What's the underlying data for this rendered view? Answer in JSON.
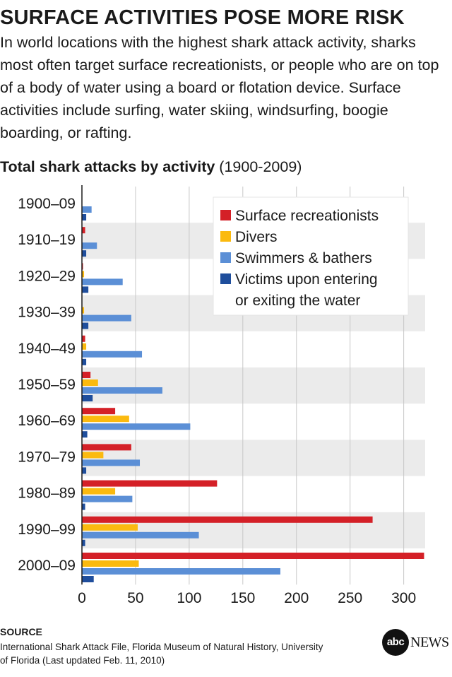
{
  "title": "SURFACE ACTIVITIES POSE MORE RISK",
  "subtitle": "In world locations with the highest shark attack activity, sharks most often target surface recreationists, or people who are on top of a body of water using a board or flotation device. Surface activities include surfing, water skiing, windsurfing, boogie boarding, or rafting.",
  "chart_heading": {
    "bold": "Total shark attacks by activity",
    "normal": " (1900-2009)"
  },
  "source": {
    "label": "SOURCE",
    "text": "International Shark Attack File, Florida Museum of Natural History, University of Florida (Last updated Feb. 11, 2010)"
  },
  "logo": {
    "circle": "abc",
    "news": "NEWS"
  },
  "chart_data": {
    "type": "bar",
    "orientation": "horizontal",
    "title": "Total shark attacks by activity",
    "subtitle": "(1900-2009)",
    "xlabel": "",
    "ylabel": "",
    "xlim": [
      0,
      320
    ],
    "xticks": [
      0,
      50,
      100,
      150,
      200,
      250,
      300
    ],
    "categories": [
      "1900–09",
      "1910–19",
      "1920–29",
      "1930–39",
      "1940–49",
      "1950–59",
      "1960–69",
      "1970–79",
      "1980–89",
      "1990–99",
      "2000–09"
    ],
    "series": [
      {
        "name": "Surface recreationists",
        "color": "#d42027",
        "values": [
          0,
          3,
          1,
          0,
          3,
          8,
          31,
          46,
          126,
          271,
          319
        ]
      },
      {
        "name": "Divers",
        "color": "#fbba0f",
        "values": [
          0,
          0,
          2,
          2,
          4,
          15,
          44,
          20,
          31,
          52,
          53
        ]
      },
      {
        "name": "Swimmers & bathers",
        "color": "#5b8fd6",
        "values": [
          9,
          14,
          38,
          46,
          56,
          75,
          101,
          54,
          47,
          109,
          185
        ]
      },
      {
        "name": "Victims upon entering or exiting the water",
        "color": "#1f4e9c",
        "values": [
          4,
          4,
          6,
          6,
          4,
          10,
          5,
          4,
          3,
          3,
          11
        ]
      }
    ],
    "legend": {
      "placement": "top-right",
      "entries": [
        {
          "lines": [
            "Surface recreationists"
          ],
          "color": "#d42027"
        },
        {
          "lines": [
            "Divers"
          ],
          "color": "#fbba0f"
        },
        {
          "lines": [
            "Swimmers & bathers"
          ],
          "color": "#5b8fd6"
        },
        {
          "lines": [
            "Victims upon entering",
            "or exiting the water"
          ],
          "color": "#1f4e9c"
        }
      ]
    },
    "band_color": "#ebebeb",
    "grid": true,
    "grid_color": "#c8c8c8"
  }
}
